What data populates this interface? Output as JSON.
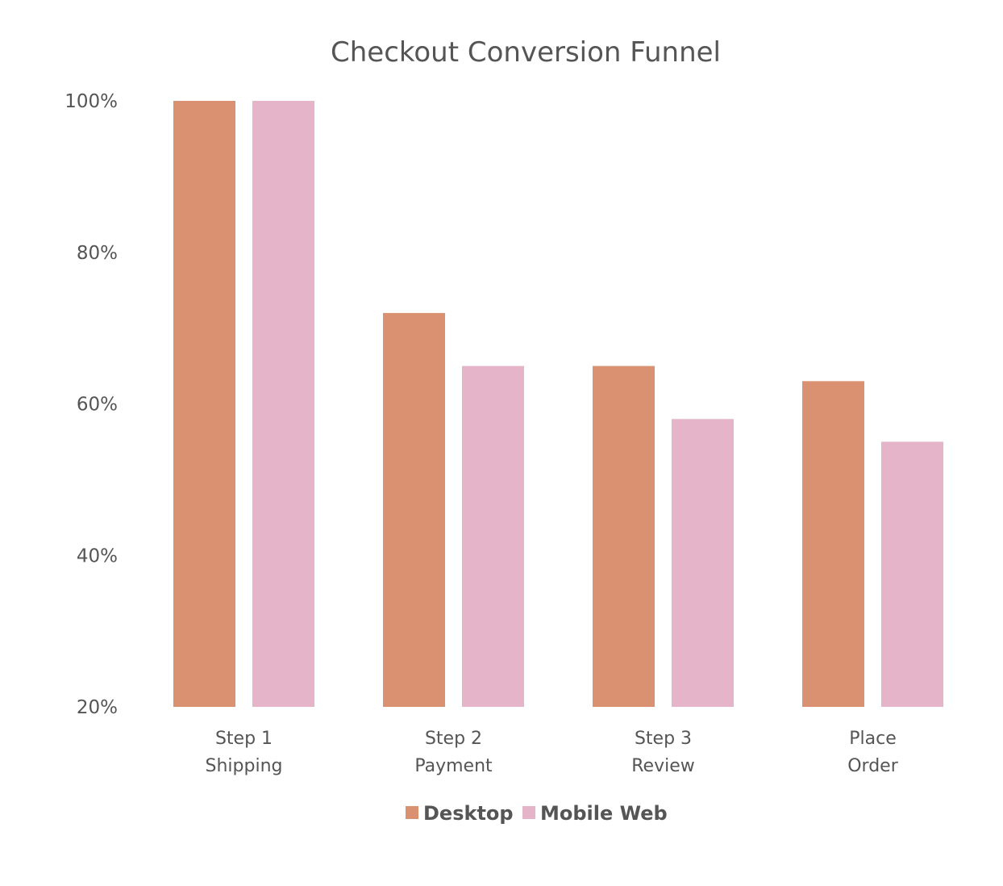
{
  "chart_data": {
    "type": "bar",
    "title": "Checkout Conversion Funnel",
    "xlabel": "",
    "ylabel": "",
    "categories": [
      [
        "Step 1",
        "Shipping"
      ],
      [
        "Step 2",
        "Payment"
      ],
      [
        "Step 3",
        "Review"
      ],
      [
        "Place",
        "Order"
      ]
    ],
    "series": [
      {
        "name": "Desktop",
        "color": "#DA9171",
        "values": [
          100,
          72,
          65,
          63
        ]
      },
      {
        "name": "Mobile Web",
        "color": "#E6B4C8",
        "values": [
          100,
          65,
          58,
          55
        ]
      }
    ],
    "ylim": [
      20,
      100
    ],
    "yticks": [
      20,
      40,
      60,
      80,
      100
    ],
    "ytick_labels": [
      "20%",
      "40%",
      "60%",
      "80%",
      "100%"
    ],
    "grid": false,
    "legend_position": "bottom-center"
  }
}
